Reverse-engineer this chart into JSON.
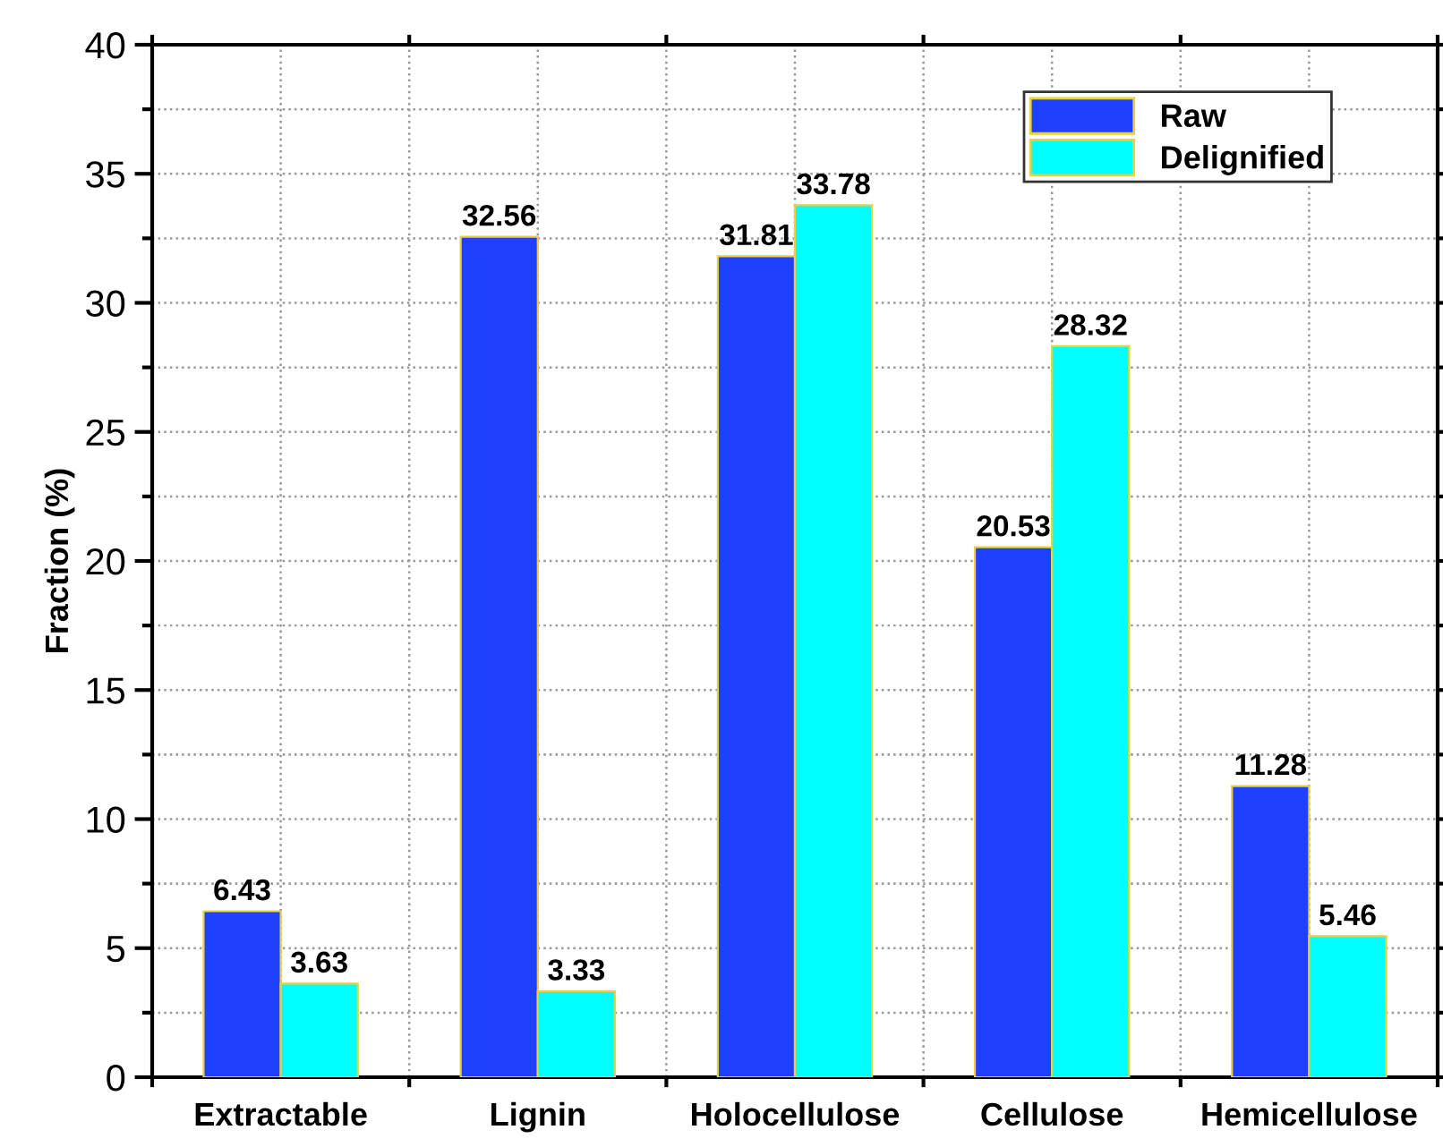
{
  "chart_data": {
    "type": "bar",
    "ylabel": "Fraction (%)",
    "categories": [
      "Extractable",
      "Lignin",
      "Holocellulose",
      "Cellulose",
      "Hemicellulose"
    ],
    "series": [
      {
        "name": "Raw",
        "color": "#2040ff",
        "values": [
          6.43,
          32.56,
          31.81,
          20.53,
          11.28
        ]
      },
      {
        "name": "Delignified",
        "color": "#00ffff",
        "values": [
          3.63,
          3.33,
          33.78,
          28.32,
          5.46
        ]
      }
    ],
    "ylim": [
      0,
      40
    ],
    "yticks": [
      0,
      5,
      10,
      15,
      20,
      25,
      30,
      35,
      40
    ],
    "grid": true,
    "legend": "top right",
    "data_labels": true
  }
}
